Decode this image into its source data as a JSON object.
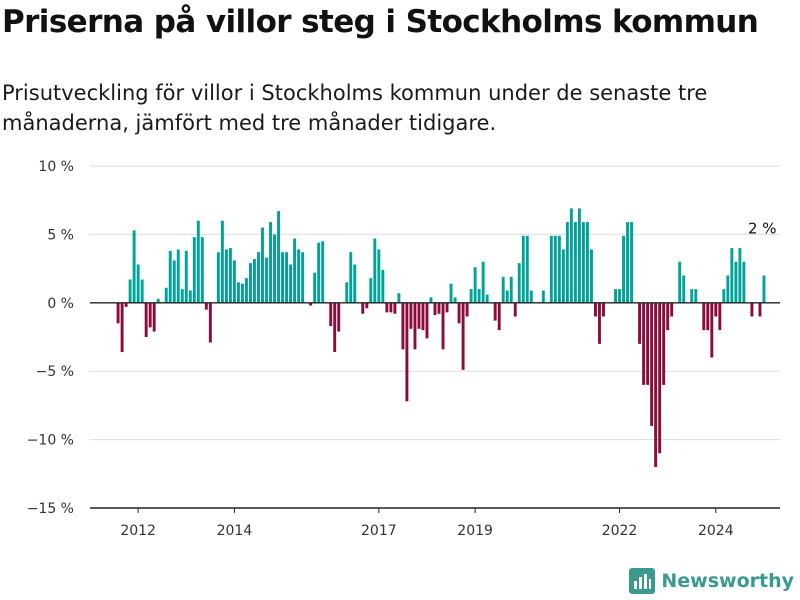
{
  "header": {
    "title": "Priserna på villor steg i Stockholms kommun",
    "subtitle": "Prisutveckling för villor i Stockholms kommun under de senaste tre månaderna, jämfört med tre månader tidigare."
  },
  "brand": {
    "name": "Newsworthy",
    "icon": "bar-chart-icon",
    "color": "#3a9a8f"
  },
  "colors": {
    "positive": "#00a398",
    "negative": "#8c0a3c",
    "grid": "#dddddd",
    "axis": "#222222"
  },
  "chart_data": {
    "type": "bar",
    "title": "Priserna på villor steg i Stockholms kommun",
    "subtitle": "Prisutveckling för villor i Stockholms kommun under de senaste tre månaderna, jämfört med tre månader tidigare.",
    "xlabel": "",
    "ylabel": "",
    "x_start": "2011-01",
    "x_end": "2025-05",
    "ylim": [
      -15,
      10
    ],
    "yticks": [
      10,
      5,
      0,
      -5,
      -10,
      -15
    ],
    "ytick_labels": [
      "10 %",
      "5 %",
      "0 %",
      "−5 %",
      "−10 %",
      "−15 %"
    ],
    "xticks": [
      "2012-01",
      "2014-01",
      "2017-01",
      "2019-01",
      "2022-01",
      "2024-01"
    ],
    "xtick_labels": [
      "2012",
      "2014",
      "2017",
      "2019",
      "2022",
      "2024"
    ],
    "grid": true,
    "legend": "none",
    "annotation": {
      "month": "2025-01",
      "text": "2 %"
    },
    "series": [
      {
        "start": "2011-08",
        "values": [
          -1.5,
          -3.6,
          -0.3,
          1.7,
          5.3,
          2.8,
          1.7,
          -2.5,
          -1.8,
          -2.1,
          0.3,
          0,
          1.1,
          3.8,
          3.1,
          3.9,
          1.0,
          3.8,
          0.9,
          4.8,
          6.0,
          4.8,
          -0.5,
          -2.9,
          0,
          3.7,
          6.0,
          3.9,
          4.0,
          3.1,
          1.5,
          1.4,
          1.8,
          2.9,
          3.2,
          3.7,
          5.5,
          3.3,
          5.9,
          5.0,
          6.7,
          3.7,
          3.7,
          2.8,
          4.7,
          3.9,
          3.7,
          0,
          -0.2,
          2.2,
          4.4,
          4.5,
          0,
          -1.7,
          -3.6,
          -2.1,
          0,
          1.5,
          3.7,
          2.8,
          0,
          -0.8,
          -0.4,
          1.8,
          4.7,
          3.9,
          2.4,
          -0.7,
          -0.7,
          -0.8,
          0.7,
          -3.4,
          -7.2,
          -1.9,
          -3.4,
          -1.9,
          -2.0,
          -2.6,
          0.4,
          -0.9,
          -0.8,
          -3.4,
          -0.7,
          1.4,
          0.4,
          -1.5,
          -4.9,
          -1.0,
          1.0,
          2.6,
          1.0,
          3.0,
          0.6,
          0,
          -1.3,
          -2.0,
          1.9,
          0.9,
          1.9,
          -1.0,
          2.9,
          4.9,
          4.9,
          0.9,
          0,
          0,
          0.9,
          0,
          4.9,
          4.9,
          4.9,
          3.9,
          5.9,
          6.9,
          5.9,
          6.9,
          5.9,
          5.9,
          3.9,
          -1.0,
          -3.0,
          -1.0,
          0,
          0,
          1.0,
          1.0,
          4.9,
          5.9,
          5.9,
          0,
          -3.0,
          -6.0,
          -6.0,
          -9.0,
          -12.0,
          -11.0,
          -6.0,
          -2.0,
          -1.0,
          0,
          3.0,
          2.0,
          0,
          1.0,
          1.0,
          0,
          -2.0,
          -2.0,
          -4.0,
          -1.0,
          -2.0,
          1.0,
          2.0,
          4.0,
          3.0,
          4.0,
          3.0,
          0,
          -1.0,
          0,
          -1.0,
          2.0
        ]
      }
    ]
  }
}
